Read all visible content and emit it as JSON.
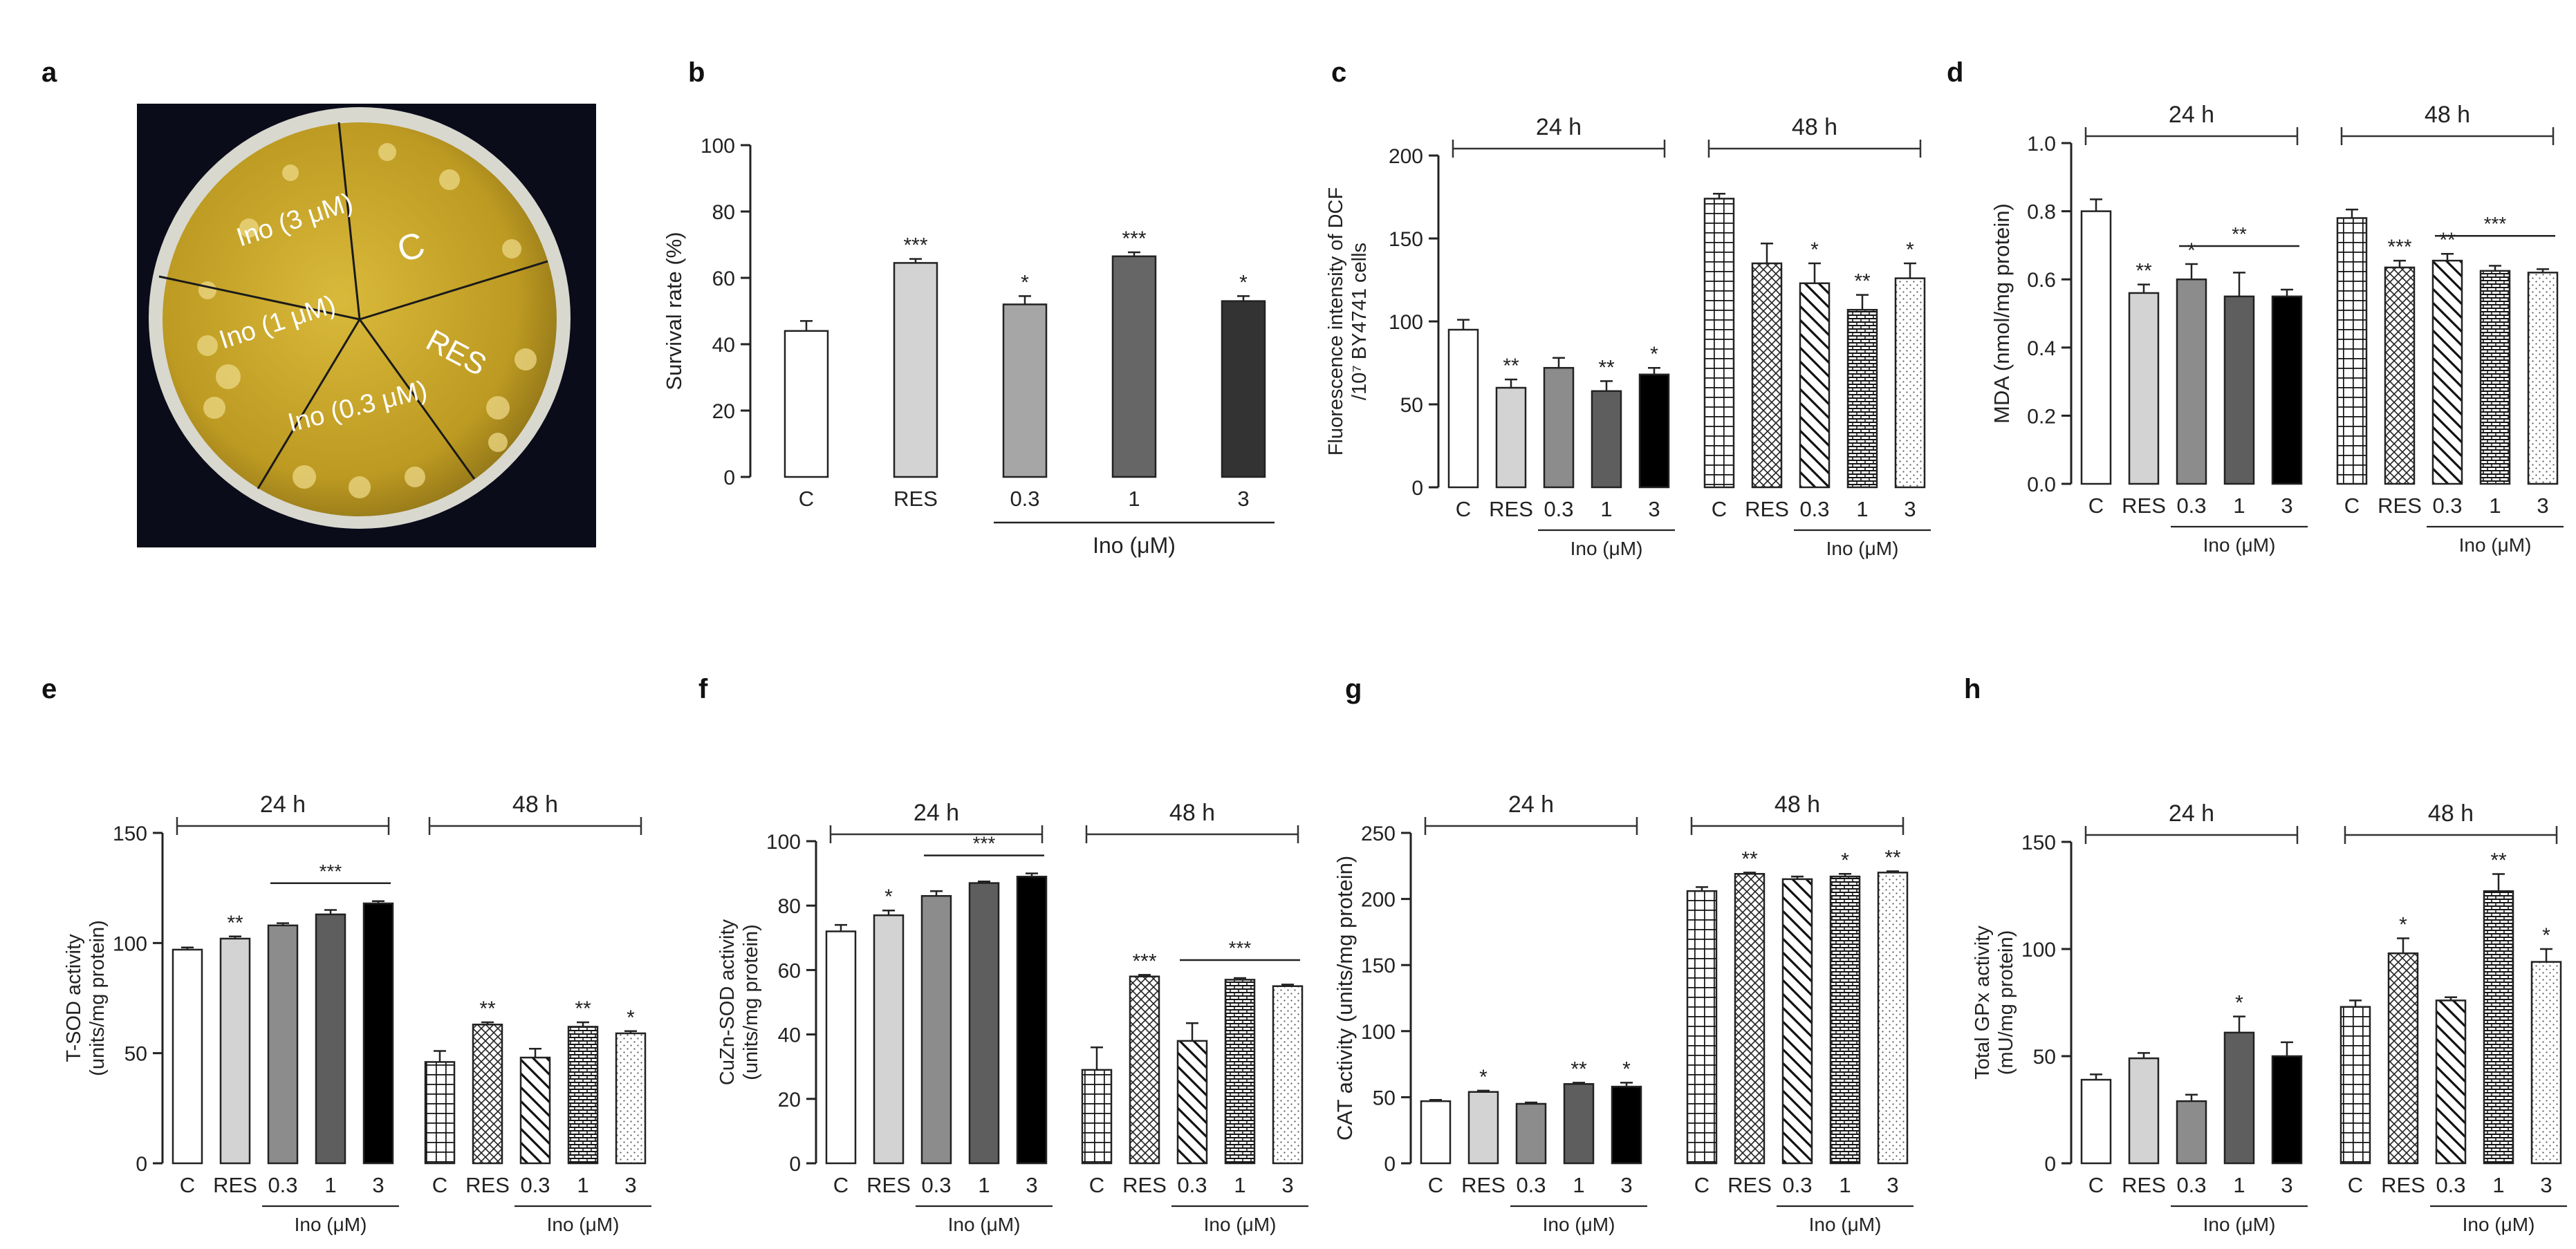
{
  "figure": {
    "panel_letters": [
      "a",
      "b",
      "c",
      "d",
      "e",
      "f",
      "g",
      "h"
    ]
  },
  "photo": {
    "sector_labels": [
      "C",
      "RES",
      "Ino (0.3 μM)",
      "Ino (1 μM)",
      "Ino (3 μM)"
    ],
    "colors": {
      "background": "#0b0c1a",
      "agar": "#c9a62a",
      "rim": "#dcdcd0"
    }
  },
  "chart_data": [
    {
      "panel": "b",
      "type": "bar",
      "title": "",
      "ylabel": "Survival rate (%)",
      "ylim": [
        0,
        100
      ],
      "yticks": [
        "0",
        "20",
        "40",
        "60",
        "80",
        "100"
      ],
      "categories": [
        "C",
        "RES",
        "0.3",
        "1",
        "3"
      ],
      "values": [
        44,
        64.5,
        52,
        66.5,
        53
      ],
      "errors": [
        3,
        1.2,
        2.5,
        1.2,
        1.5
      ],
      "significance": [
        "",
        "***",
        "*",
        "***",
        "*"
      ],
      "fills": [
        "#ffffff",
        "#d3d3d3",
        "#a6a6a6",
        "#666666",
        "#333333"
      ],
      "group_label": "Ino (μM)"
    },
    {
      "panel": "c",
      "type": "bar",
      "ylabel_line1": "Fluorescence intensity of DCF",
      "ylabel_line2": "/10⁷ BY4741 cells",
      "ylim": [
        0,
        200
      ],
      "yticks": [
        "0",
        "50",
        "100",
        "150",
        "200"
      ],
      "group_label": "Ino (μM)",
      "groups": [
        {
          "name": "24 h",
          "categories": [
            "C",
            "RES",
            "0.3",
            "1",
            "3"
          ],
          "values": [
            95,
            60,
            72,
            58,
            68
          ],
          "errors": [
            6,
            5,
            6,
            6,
            4
          ],
          "significance": [
            "",
            "**",
            "",
            "**",
            "*"
          ],
          "bracket": null
        },
        {
          "name": "48 h",
          "categories": [
            "C",
            "RES",
            "0.3",
            "1",
            "3"
          ],
          "values": [
            174,
            135,
            123,
            107,
            126
          ],
          "errors": [
            3,
            12,
            12,
            9,
            9
          ],
          "significance": [
            "",
            "",
            "*",
            "**",
            "*"
          ],
          "bracket": null
        }
      ]
    },
    {
      "panel": "d",
      "type": "bar",
      "ylabel": "MDA (nmol/mg protein)",
      "ylim": [
        0,
        1.0
      ],
      "yticks": [
        "0.0",
        "0.2",
        "0.4",
        "0.6",
        "0.8",
        "1.0"
      ],
      "group_label": "Ino (μM)",
      "groups": [
        {
          "name": "24 h",
          "categories": [
            "C",
            "RES",
            "0.3",
            "1",
            "3"
          ],
          "values": [
            0.8,
            0.56,
            0.6,
            0.55,
            0.55
          ],
          "errors": [
            0.035,
            0.025,
            0.045,
            0.07,
            0.02
          ],
          "significance": [
            "",
            "**",
            "*",
            "",
            ""
          ],
          "bracket": "**"
        },
        {
          "name": "48 h",
          "categories": [
            "C",
            "RES",
            "0.3",
            "1",
            "3"
          ],
          "values": [
            0.78,
            0.635,
            0.655,
            0.625,
            0.62
          ],
          "errors": [
            0.025,
            0.02,
            0.02,
            0.015,
            0.01
          ],
          "significance": [
            "",
            "***",
            "**",
            "",
            ""
          ],
          "bracket": "***"
        }
      ]
    },
    {
      "panel": "e",
      "type": "bar",
      "ylabel_line1": "T-SOD activity",
      "ylabel_line2": "(units/mg protein)",
      "ylim": [
        0,
        150
      ],
      "yticks": [
        "0",
        "50",
        "100",
        "150"
      ],
      "group_label": "Ino (μM)",
      "groups": [
        {
          "name": "24 h",
          "categories": [
            "C",
            "RES",
            "0.3",
            "1",
            "3"
          ],
          "values": [
            97,
            102,
            108,
            113,
            118
          ],
          "errors": [
            1,
            1,
            1,
            2,
            1
          ],
          "significance": [
            "",
            "**",
            "",
            "",
            ""
          ],
          "bracket": "***"
        },
        {
          "name": "48 h",
          "categories": [
            "C",
            "RES",
            "0.3",
            "1",
            "3"
          ],
          "values": [
            46,
            63,
            48,
            62,
            59
          ],
          "errors": [
            5,
            1,
            4,
            2,
            1
          ],
          "significance": [
            "",
            "**",
            "",
            "**",
            "*"
          ],
          "bracket": null
        }
      ]
    },
    {
      "panel": "f",
      "type": "bar",
      "ylabel_line1": "CuZn-SOD activity",
      "ylabel_line2": "(units/mg protein)",
      "ylim": [
        0,
        100
      ],
      "yticks": [
        "0",
        "20",
        "40",
        "60",
        "80",
        "100"
      ],
      "group_label": "Ino (μM)",
      "groups": [
        {
          "name": "24 h",
          "categories": [
            "C",
            "RES",
            "0.3",
            "1",
            "3"
          ],
          "values": [
            72,
            77,
            83,
            87,
            89
          ],
          "errors": [
            2,
            1.5,
            1.5,
            0.5,
            1
          ],
          "significance": [
            "",
            "*",
            "",
            "",
            ""
          ],
          "bracket": "***"
        },
        {
          "name": "48 h",
          "categories": [
            "C",
            "RES",
            "0.3",
            "1",
            "3"
          ],
          "values": [
            29,
            58,
            38,
            57,
            55
          ],
          "errors": [
            7,
            0.5,
            5.5,
            0.5,
            0.5
          ],
          "significance": [
            "",
            "***",
            "",
            "",
            ""
          ],
          "bracket": "***"
        }
      ]
    },
    {
      "panel": "g",
      "type": "bar",
      "ylabel": "CAT activity (units/mg protein)",
      "ylim": [
        0,
        250
      ],
      "yticks": [
        "0",
        "50",
        "100",
        "150",
        "200",
        "250"
      ],
      "group_label": "Ino (μM)",
      "groups": [
        {
          "name": "24 h",
          "categories": [
            "C",
            "RES",
            "0.3",
            "1",
            "3"
          ],
          "values": [
            47,
            54,
            45,
            60,
            58
          ],
          "errors": [
            1,
            1,
            1,
            1,
            3
          ],
          "significance": [
            "",
            "*",
            "",
            "**",
            "*"
          ],
          "bracket": null
        },
        {
          "name": "48 h",
          "categories": [
            "C",
            "RES",
            "0.3",
            "1",
            "3"
          ],
          "values": [
            206,
            219,
            215,
            217,
            220
          ],
          "errors": [
            3,
            1,
            2,
            2,
            1
          ],
          "significance": [
            "",
            "**",
            "",
            "*",
            "**"
          ],
          "bracket": null
        }
      ]
    },
    {
      "panel": "h",
      "type": "bar",
      "ylabel_line1": "Total GPx activity",
      "ylabel_line2": "(mU/mg protein)",
      "ylim": [
        0,
        150
      ],
      "yticks": [
        "0",
        "50",
        "100",
        "150"
      ],
      "group_label": "Ino (μM)",
      "groups": [
        {
          "name": "24 h",
          "categories": [
            "C",
            "RES",
            "0.3",
            "1",
            "3"
          ],
          "values": [
            39,
            49,
            29,
            61,
            50
          ],
          "errors": [
            2.5,
            2.5,
            3,
            7.5,
            6.5
          ],
          "significance": [
            "",
            "",
            "",
            "*",
            ""
          ],
          "bracket": null
        },
        {
          "name": "48 h",
          "categories": [
            "C",
            "RES",
            "0.3",
            "1",
            "3"
          ],
          "values": [
            73,
            98,
            76,
            127,
            94
          ],
          "errors": [
            3,
            7,
            1.5,
            8,
            6
          ],
          "significance": [
            "",
            "*",
            "",
            "**",
            "*"
          ],
          "bracket": null
        }
      ]
    }
  ]
}
